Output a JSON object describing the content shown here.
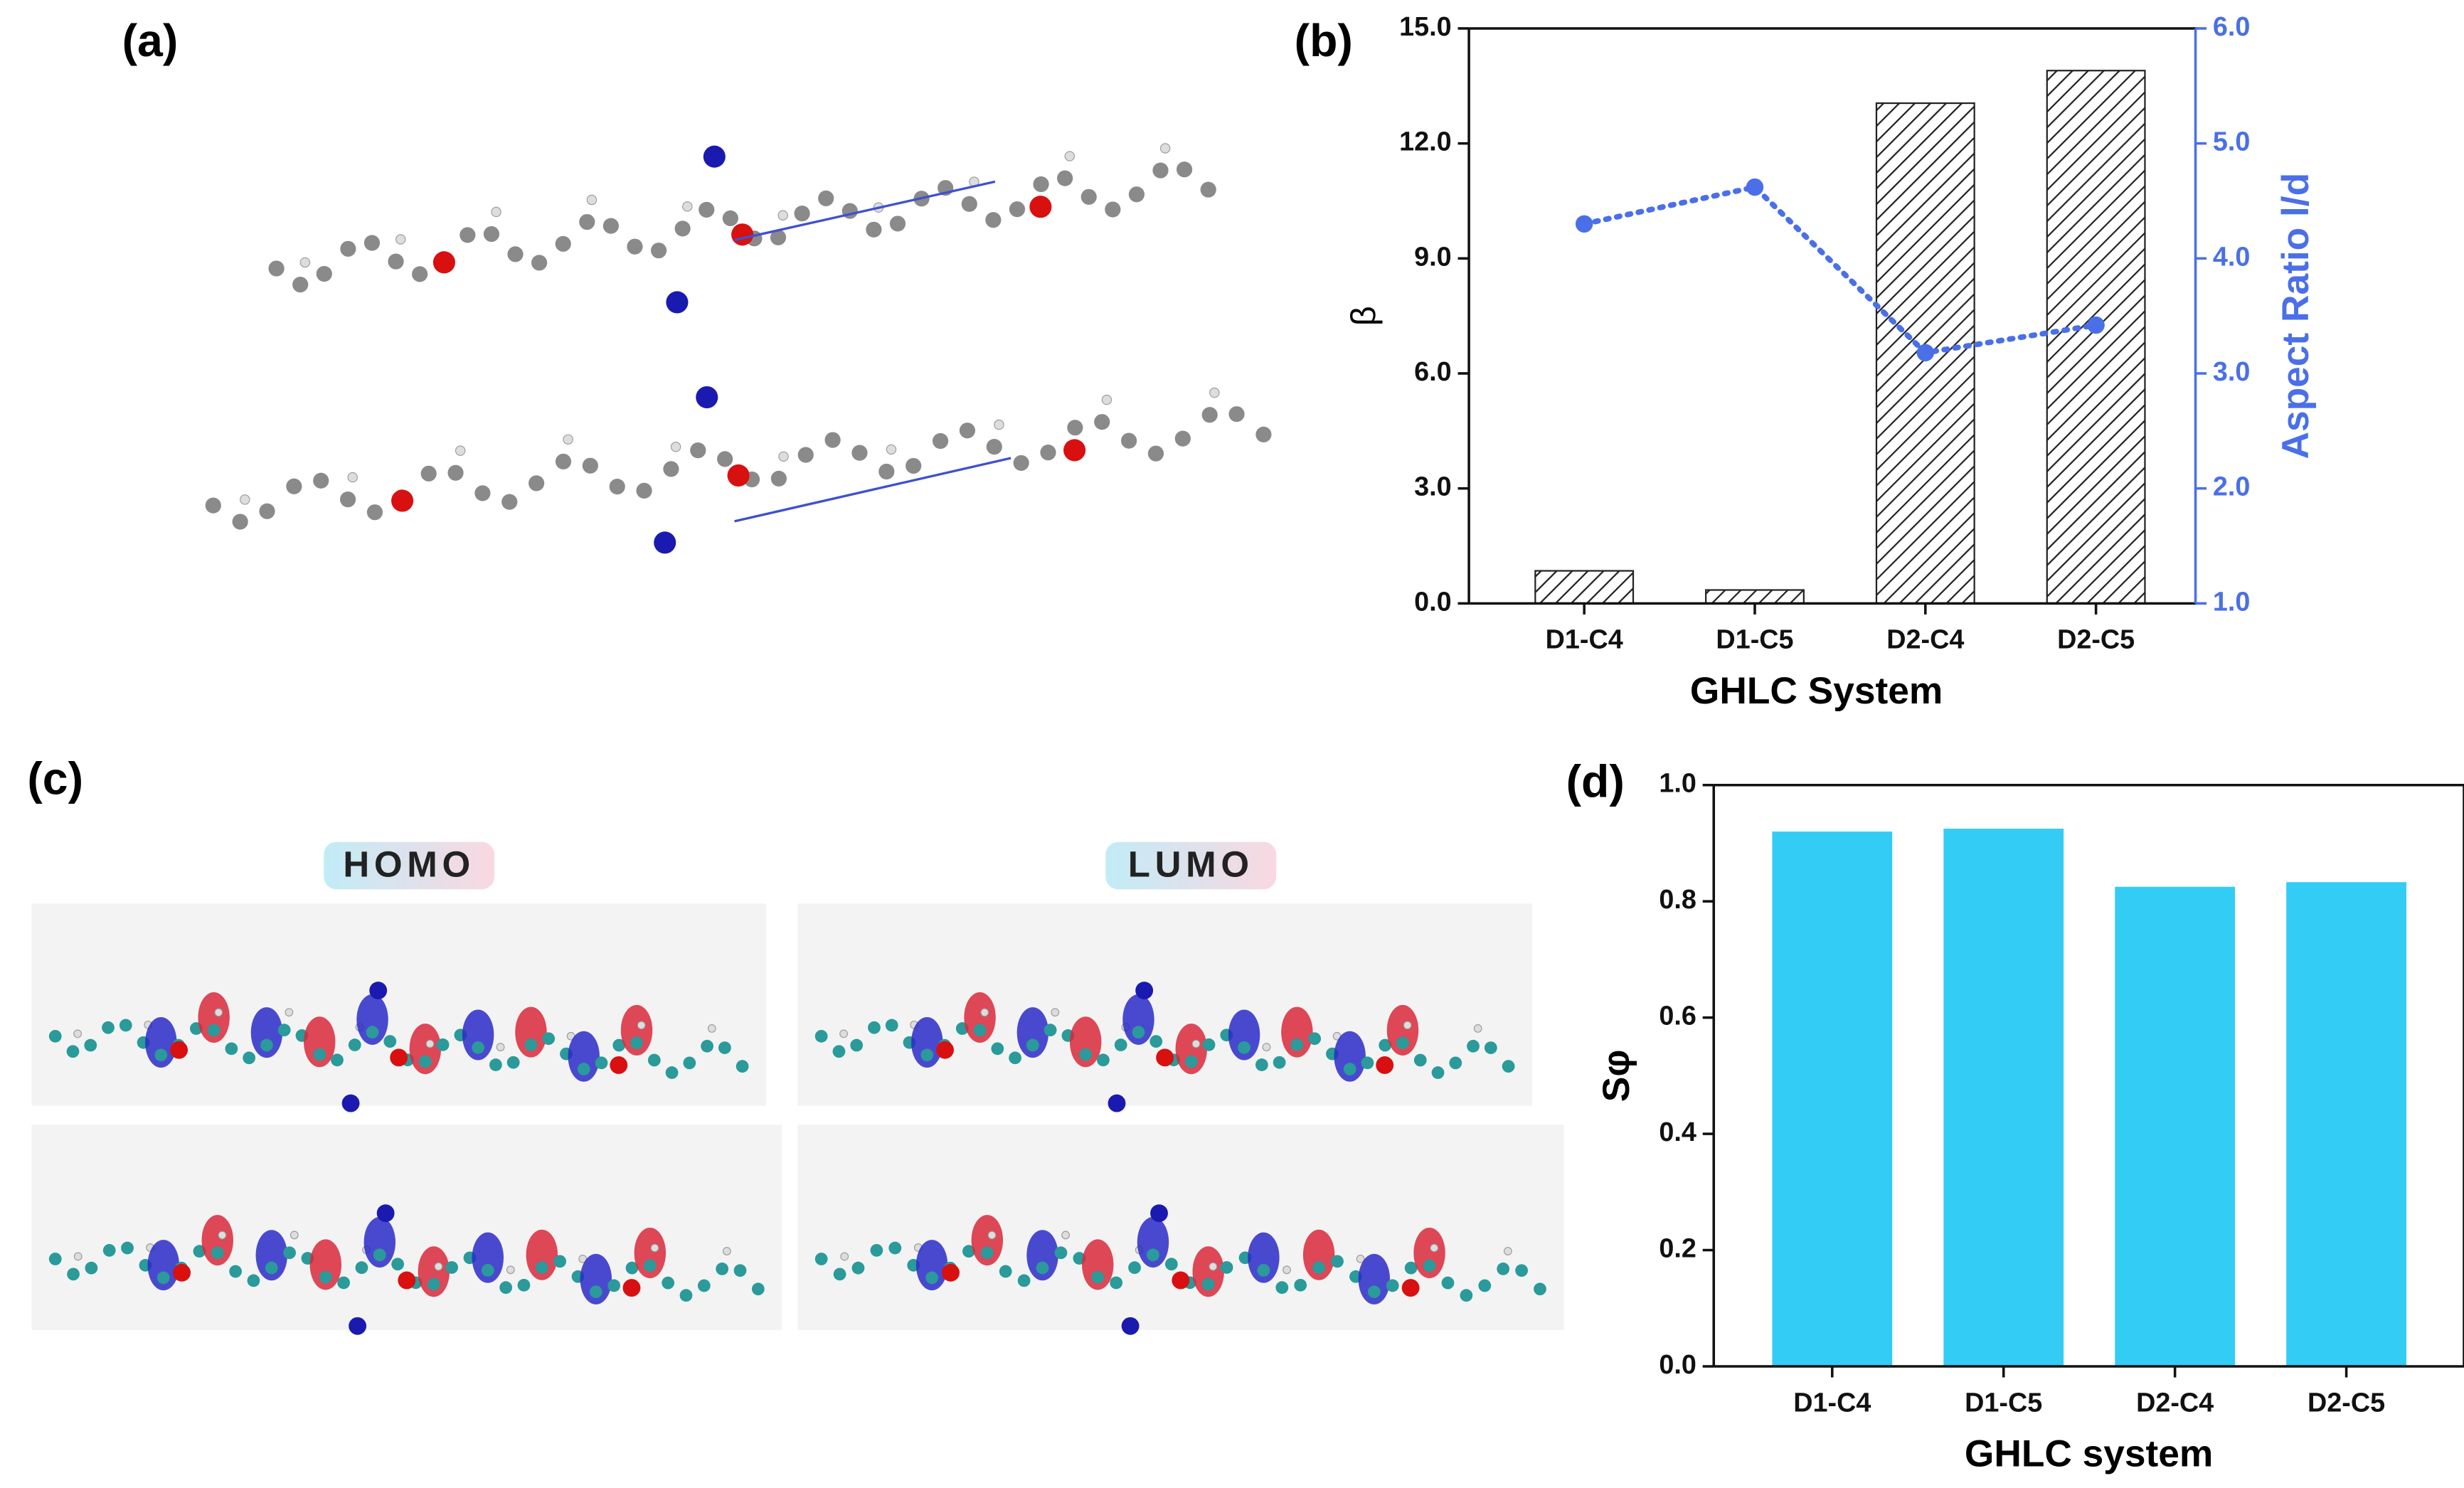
{
  "panels": {
    "a": {
      "label": "(a)"
    },
    "c": {
      "label": "(c)",
      "homo": "HOMO",
      "lumo": "LUMO"
    }
  },
  "chart_data": [
    {
      "type": "bar",
      "label": "(b)",
      "categories": [
        "D1-C4",
        "D1-C5",
        "D2-C4",
        "D2-C5"
      ],
      "xlabel": "GHLC System",
      "ylabel": "β",
      "y2label": "Aspect Ratio l/d",
      "series": [
        {
          "type": "bar",
          "values": [
            0.85,
            0.35,
            13.05,
            13.9
          ],
          "color": "#222222",
          "hatch": true
        },
        {
          "type": "line",
          "axis": "y2",
          "values": [
            4.3,
            4.62,
            3.18,
            3.42
          ],
          "color": "#4a6fe8"
        }
      ],
      "ylim": [
        0,
        15
      ],
      "yticks": [
        {
          "value": 0,
          "label": "0.0"
        },
        {
          "value": 3,
          "label": "3.0"
        },
        {
          "value": 6,
          "label": "6.0"
        },
        {
          "value": 9,
          "label": "9.0"
        },
        {
          "value": 12,
          "label": "12.0"
        },
        {
          "value": 15,
          "label": "15.0"
        }
      ],
      "y2lim": [
        1,
        6
      ],
      "y2ticks": [
        {
          "value": 1,
          "label": "1.0"
        },
        {
          "value": 2,
          "label": "2.0"
        },
        {
          "value": 3,
          "label": "3.0"
        },
        {
          "value": 4,
          "label": "4.0"
        },
        {
          "value": 5,
          "label": "5.0"
        },
        {
          "value": 6,
          "label": "6.0"
        }
      ]
    },
    {
      "type": "bar",
      "label": "(d)",
      "categories": [
        "D1-C4",
        "D1-C5",
        "D2-C4",
        "D2-C5"
      ],
      "xlabel": "GHLC system",
      "ylabel": "Sφ",
      "series": [
        {
          "type": "bar",
          "values": [
            0.92,
            0.925,
            0.825,
            0.833
          ],
          "color": "#33ccf5"
        }
      ],
      "ylim": [
        0,
        1
      ],
      "yticks": [
        {
          "value": 0,
          "label": "0.0"
        },
        {
          "value": 0.2,
          "label": "0.2"
        },
        {
          "value": 0.4,
          "label": "0.4"
        },
        {
          "value": 0.6,
          "label": "0.6"
        },
        {
          "value": 0.8,
          "label": "0.8"
        },
        {
          "value": 1,
          "label": "1.0"
        }
      ]
    }
  ]
}
